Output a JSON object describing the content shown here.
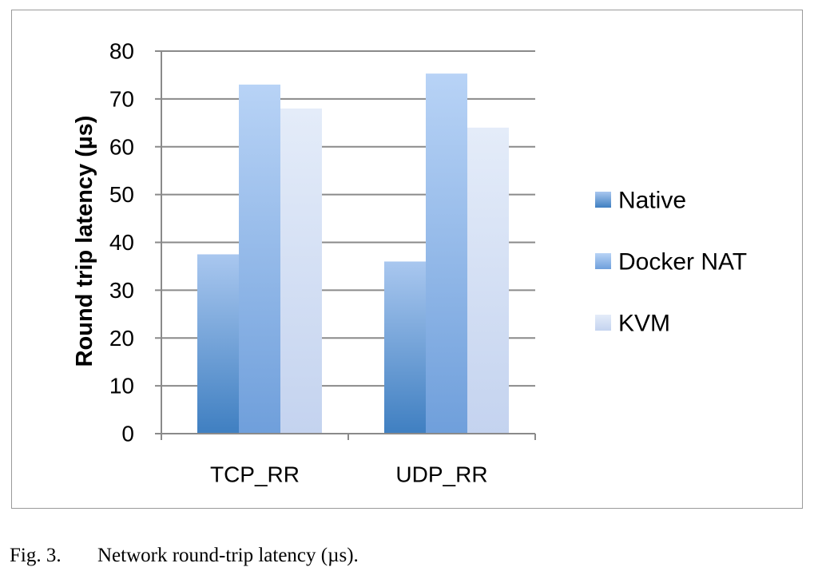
{
  "caption": {
    "label": "Fig. 3.",
    "text": "Network round-trip latency (µs)."
  },
  "chart_data": {
    "type": "bar",
    "title": "",
    "xlabel": "",
    "ylabel": "Round trip latency (µs)",
    "ylim": [
      0,
      80
    ],
    "yticks": [
      0,
      10,
      20,
      30,
      40,
      50,
      60,
      70,
      80
    ],
    "grid": true,
    "legend_position": "right",
    "categories": [
      "TCP_RR",
      "UDP_RR"
    ],
    "series": [
      {
        "name": "Native",
        "values": [
          37.5,
          36
        ],
        "color_top": "#a9c7ef",
        "color_bottom": "#3f7fc1"
      },
      {
        "name": "Docker NAT",
        "values": [
          73,
          75.3
        ],
        "color_top": "#b8d3f6",
        "color_bottom": "#6f9fdb"
      },
      {
        "name": "KVM",
        "values": [
          68,
          64
        ],
        "color_top": "#e4ecf9",
        "color_bottom": "#c4d3ef"
      }
    ]
  }
}
